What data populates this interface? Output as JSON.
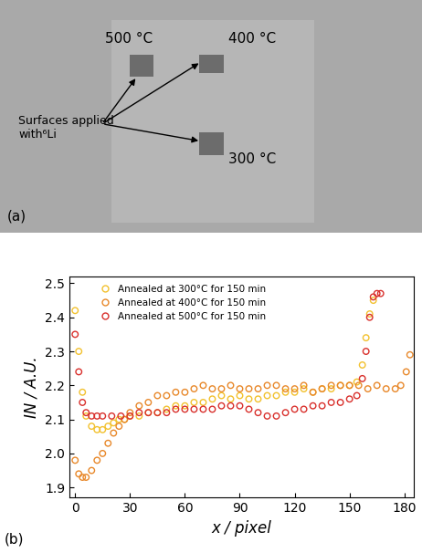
{
  "image_panel": {
    "panel_label": "(a)",
    "labels": [
      "500 °C",
      "400 °C",
      "300 °C"
    ],
    "annotation": "Surfaces applied\nwith⁶Li"
  },
  "chart_data": {
    "type": "scatter",
    "panel_label": "(b)",
    "x_label": "x / pixel",
    "y_label": "IN / A.U.",
    "xlim": [
      -3,
      185
    ],
    "ylim": [
      1.87,
      2.52
    ],
    "xticks": [
      0,
      30,
      60,
      90,
      120,
      150,
      180
    ],
    "yticks": [
      1.9,
      2.0,
      2.1,
      2.2,
      2.3,
      2.4,
      2.5
    ],
    "legend": "upper left",
    "marker": "o",
    "series": [
      {
        "name": "Annealed at 300°C for 150 min",
        "color": "#f2c12e",
        "x": [
          0,
          2,
          4,
          6,
          9,
          12,
          15,
          18,
          21,
          24,
          27,
          30,
          35,
          40,
          45,
          50,
          55,
          60,
          65,
          70,
          75,
          80,
          85,
          90,
          95,
          100,
          105,
          110,
          115,
          120,
          125,
          130,
          135,
          140,
          145,
          150,
          154,
          157,
          159,
          161,
          163
        ],
        "values": [
          2.42,
          2.3,
          2.18,
          2.11,
          2.08,
          2.07,
          2.07,
          2.08,
          2.09,
          2.1,
          2.1,
          2.11,
          2.11,
          2.12,
          2.12,
          2.13,
          2.14,
          2.14,
          2.15,
          2.15,
          2.16,
          2.17,
          2.16,
          2.17,
          2.16,
          2.16,
          2.17,
          2.17,
          2.18,
          2.18,
          2.19,
          2.18,
          2.19,
          2.19,
          2.2,
          2.2,
          2.21,
          2.26,
          2.34,
          2.41,
          2.45
        ]
      },
      {
        "name": "Annealed at 400°C for 150 min",
        "color": "#e8882a",
        "x": [
          0,
          2,
          4,
          6,
          9,
          12,
          15,
          18,
          21,
          24,
          27,
          30,
          35,
          40,
          45,
          50,
          55,
          60,
          65,
          70,
          75,
          80,
          85,
          90,
          95,
          100,
          105,
          110,
          115,
          120,
          125,
          130,
          135,
          140,
          145,
          150,
          155,
          160,
          165,
          170,
          175,
          178,
          181,
          183
        ],
        "values": [
          1.98,
          1.94,
          1.93,
          1.93,
          1.95,
          1.98,
          2.0,
          2.03,
          2.06,
          2.08,
          2.1,
          2.12,
          2.14,
          2.15,
          2.17,
          2.17,
          2.18,
          2.18,
          2.19,
          2.2,
          2.19,
          2.19,
          2.2,
          2.19,
          2.19,
          2.19,
          2.2,
          2.2,
          2.19,
          2.19,
          2.2,
          2.18,
          2.19,
          2.2,
          2.2,
          2.2,
          2.2,
          2.19,
          2.2,
          2.19,
          2.19,
          2.2,
          2.24,
          2.29
        ]
      },
      {
        "name": "Annealed at 500°C for 150 min",
        "color": "#d9302c",
        "x": [
          0,
          2,
          4,
          6,
          9,
          12,
          15,
          20,
          25,
          30,
          35,
          40,
          45,
          50,
          55,
          60,
          65,
          70,
          75,
          80,
          85,
          90,
          95,
          100,
          105,
          110,
          115,
          120,
          125,
          130,
          135,
          140,
          145,
          150,
          154,
          157,
          159,
          161,
          163,
          165,
          167
        ],
        "values": [
          2.35,
          2.24,
          2.15,
          2.12,
          2.11,
          2.11,
          2.11,
          2.11,
          2.11,
          2.11,
          2.12,
          2.12,
          2.12,
          2.12,
          2.13,
          2.13,
          2.13,
          2.13,
          2.13,
          2.14,
          2.14,
          2.14,
          2.13,
          2.12,
          2.11,
          2.11,
          2.12,
          2.13,
          2.13,
          2.14,
          2.14,
          2.15,
          2.15,
          2.16,
          2.17,
          2.22,
          2.3,
          2.4,
          2.46,
          2.47,
          2.47
        ]
      }
    ]
  }
}
